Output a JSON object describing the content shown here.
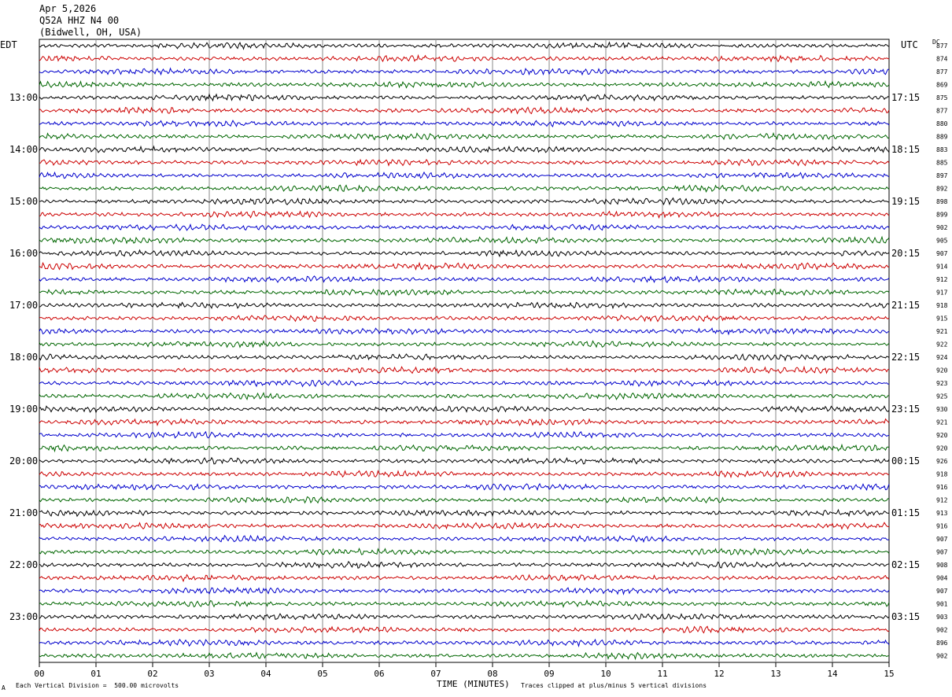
{
  "header": {
    "date": "Apr 5,2026",
    "station": "Q52A HHZ N4 00",
    "location": "(Bidwell, OH, USA)"
  },
  "left_tz": "EDT",
  "right_tz": "UTC",
  "dc_label": "DC",
  "footer": {
    "division": "Each Vertical Division =  500.00 microvolts",
    "xlabel": "TIME (MINUTES)",
    "clip_note": "Traces clipped at plus/minus 5 vertical divisions",
    "corner_mark": "A"
  },
  "chart_data": {
    "type": "line",
    "title": "Q52A HHZ N4 00",
    "xlabel": "TIME (MINUTES)",
    "xlim": [
      0,
      15
    ],
    "x_ticks": [
      "00",
      "01",
      "02",
      "03",
      "04",
      "05",
      "06",
      "07",
      "08",
      "09",
      "10",
      "11",
      "12",
      "13",
      "14",
      "15"
    ],
    "grid": true,
    "trace_colors": [
      "#000000",
      "#cc0000",
      "#0000cc",
      "#006600"
    ],
    "left_hour_labels": [
      "13:00",
      "14:00",
      "15:00",
      "16:00",
      "17:00",
      "18:00",
      "19:00",
      "20:00",
      "21:00",
      "22:00",
      "23:00"
    ],
    "right_hour_labels": [
      "17:15",
      "18:15",
      "19:15",
      "20:15",
      "21:15",
      "22:15",
      "23:15",
      "00:15",
      "01:15",
      "02:15",
      "03:15"
    ],
    "dc_offsets": [
      877,
      874,
      877,
      869,
      875,
      877,
      880,
      889,
      883,
      885,
      897,
      892,
      898,
      899,
      902,
      905,
      907,
      914,
      912,
      917,
      918,
      915,
      921,
      922,
      924,
      920,
      923,
      925,
      930,
      921,
      920,
      920,
      926,
      918,
      916,
      912,
      913,
      916,
      907,
      907,
      908,
      904,
      907,
      901,
      903,
      902,
      896,
      902
    ]
  }
}
